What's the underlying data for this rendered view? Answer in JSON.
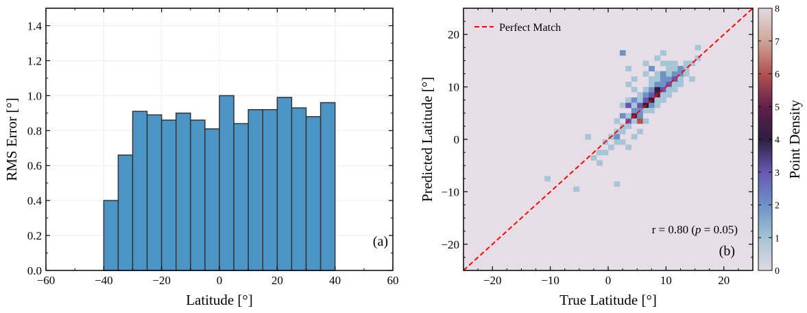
{
  "chart_data": [
    {
      "type": "bar",
      "panel_label": "(a)",
      "xlabel": "Latitude [°]",
      "ylabel": "RMS Error [°]",
      "xlim": [
        -60,
        60
      ],
      "ylim": [
        0,
        1.5
      ],
      "grid": true,
      "bar_color": "#4d94c6",
      "bar_edge_color": "#333333",
      "bin_width": 5,
      "bins": [
        {
          "x0": -40,
          "x1": -35,
          "value": 0.4
        },
        {
          "x0": -35,
          "x1": -30,
          "value": 0.66
        },
        {
          "x0": -30,
          "x1": -25,
          "value": 0.91
        },
        {
          "x0": -25,
          "x1": -20,
          "value": 0.89
        },
        {
          "x0": -20,
          "x1": -15,
          "value": 0.86
        },
        {
          "x0": -15,
          "x1": -10,
          "value": 0.9
        },
        {
          "x0": -10,
          "x1": -5,
          "value": 0.86
        },
        {
          "x0": -5,
          "x1": 0,
          "value": 0.81
        },
        {
          "x0": 0,
          "x1": 5,
          "value": 1.0
        },
        {
          "x0": 5,
          "x1": 10,
          "value": 0.84
        },
        {
          "x0": 10,
          "x1": 15,
          "value": 0.92
        },
        {
          "x0": 15,
          "x1": 20,
          "value": 0.92
        },
        {
          "x0": 20,
          "x1": 25,
          "value": 0.99
        },
        {
          "x0": 25,
          "x1": 30,
          "value": 0.93
        },
        {
          "x0": 30,
          "x1": 35,
          "value": 0.88
        },
        {
          "x0": 35,
          "x1": 40,
          "value": 0.96
        }
      ],
      "xticks": [
        "−60",
        "−40",
        "−20",
        "0",
        "20",
        "40",
        "60"
      ],
      "xtick_values": [
        -60,
        -40,
        -20,
        0,
        20,
        40,
        60
      ],
      "yticks": [
        "0.0",
        "0.2",
        "0.4",
        "0.6",
        "0.8",
        "1.0",
        "1.2",
        "1.4"
      ],
      "ytick_values": [
        0,
        0.2,
        0.4,
        0.6,
        0.8,
        1.0,
        1.2,
        1.4
      ]
    },
    {
      "type": "heatmap",
      "panel_label": "(b)",
      "xlabel": "True Latitude [°]",
      "ylabel": "Predicted Latitude [°]",
      "xlim": [
        -25,
        25
      ],
      "ylim": [
        -25,
        25
      ],
      "background_color": "#e6dde6",
      "legend": {
        "entry": "Perfect Match",
        "placement": "top-left",
        "line_color": "#ff0000"
      },
      "annotation_prefix": "r = 0.80 (",
      "annotation_p": "p",
      "annotation_suffix": " = 0.05)",
      "colorbar": {
        "label": "Point Density",
        "min": 0,
        "max": 8,
        "ticks": [
          "0",
          "1",
          "2",
          "3",
          "4",
          "5",
          "6",
          "7",
          "8"
        ],
        "tick_values": [
          0,
          1,
          2,
          3,
          4,
          5,
          6,
          7,
          8
        ]
      },
      "cell_size": 1,
      "cells": [
        [
          -11,
          -8,
          1
        ],
        [
          -6,
          -10,
          1
        ],
        [
          -3,
          -4,
          1
        ],
        [
          -2,
          -3,
          1
        ],
        [
          -2,
          -5,
          1
        ],
        [
          -4,
          0,
          1
        ],
        [
          -1,
          -1,
          1
        ],
        [
          -1,
          -3,
          1
        ],
        [
          0,
          0,
          1
        ],
        [
          0,
          -2,
          1
        ],
        [
          1,
          1,
          1
        ],
        [
          1,
          0,
          2
        ],
        [
          1,
          -1,
          1
        ],
        [
          1,
          3,
          1
        ],
        [
          1,
          -9,
          1
        ],
        [
          2,
          2,
          1
        ],
        [
          2,
          4,
          2
        ],
        [
          2,
          1,
          1
        ],
        [
          2,
          -1,
          1
        ],
        [
          2,
          6,
          1
        ],
        [
          2,
          16,
          2
        ],
        [
          3,
          3,
          3
        ],
        [
          3,
          4,
          1
        ],
        [
          3,
          6,
          3
        ],
        [
          3,
          2,
          1
        ],
        [
          3,
          7,
          1
        ],
        [
          3,
          -2,
          1
        ],
        [
          3,
          10,
          1
        ],
        [
          3,
          13,
          1
        ],
        [
          4,
          4,
          5
        ],
        [
          4,
          5,
          2
        ],
        [
          4,
          3,
          1
        ],
        [
          4,
          7,
          2
        ],
        [
          4,
          9,
          1
        ],
        [
          4,
          6,
          1
        ],
        [
          4,
          0,
          1
        ],
        [
          4,
          11,
          1
        ],
        [
          5,
          3,
          6
        ],
        [
          5,
          5,
          2
        ],
        [
          5,
          6,
          3
        ],
        [
          5,
          7,
          1
        ],
        [
          5,
          4,
          2
        ],
        [
          5,
          8,
          1
        ],
        [
          5,
          1,
          1
        ],
        [
          6,
          6,
          4
        ],
        [
          6,
          7,
          3
        ],
        [
          6,
          8,
          2
        ],
        [
          6,
          5,
          1
        ],
        [
          6,
          9,
          1
        ],
        [
          6,
          3,
          1
        ],
        [
          6,
          12,
          1
        ],
        [
          6,
          14,
          1
        ],
        [
          7,
          7,
          4
        ],
        [
          7,
          8,
          3
        ],
        [
          7,
          9,
          2
        ],
        [
          7,
          6,
          2
        ],
        [
          7,
          10,
          1
        ],
        [
          7,
          5,
          1
        ],
        [
          7,
          11,
          1
        ],
        [
          7,
          13,
          2
        ],
        [
          8,
          8,
          5
        ],
        [
          8,
          9,
          4
        ],
        [
          8,
          10,
          2
        ],
        [
          8,
          7,
          1
        ],
        [
          8,
          11,
          1
        ],
        [
          8,
          12,
          1
        ],
        [
          8,
          6,
          1
        ],
        [
          8,
          15,
          1
        ],
        [
          9,
          9,
          3
        ],
        [
          9,
          10,
          2
        ],
        [
          9,
          8,
          1
        ],
        [
          9,
          11,
          2
        ],
        [
          9,
          12,
          2
        ],
        [
          9,
          7,
          1
        ],
        [
          9,
          14,
          1
        ],
        [
          9,
          16,
          1
        ],
        [
          10,
          10,
          3
        ],
        [
          10,
          11,
          2
        ],
        [
          10,
          12,
          1
        ],
        [
          10,
          9,
          1
        ],
        [
          10,
          13,
          1
        ],
        [
          10,
          8,
          1
        ],
        [
          10,
          14,
          1
        ],
        [
          11,
          11,
          3
        ],
        [
          11,
          12,
          2
        ],
        [
          11,
          13,
          1
        ],
        [
          11,
          10,
          1
        ],
        [
          11,
          9,
          1
        ],
        [
          11,
          14,
          1
        ],
        [
          12,
          12,
          2
        ],
        [
          12,
          11,
          1
        ],
        [
          12,
          13,
          2
        ],
        [
          12,
          10,
          1
        ],
        [
          13,
          13,
          1
        ],
        [
          13,
          12,
          1
        ],
        [
          13,
          14,
          1
        ],
        [
          14,
          14,
          1
        ],
        [
          14,
          11,
          1
        ],
        [
          15,
          15,
          1
        ],
        [
          15,
          17,
          1
        ]
      ],
      "xticks": [
        "−20",
        "−10",
        "0",
        "10",
        "20"
      ],
      "xtick_values": [
        -20,
        -10,
        0,
        10,
        20
      ],
      "yticks": [
        "−20",
        "−10",
        "0",
        "10",
        "20"
      ],
      "ytick_values": [
        -20,
        -10,
        0,
        10,
        20
      ]
    }
  ]
}
